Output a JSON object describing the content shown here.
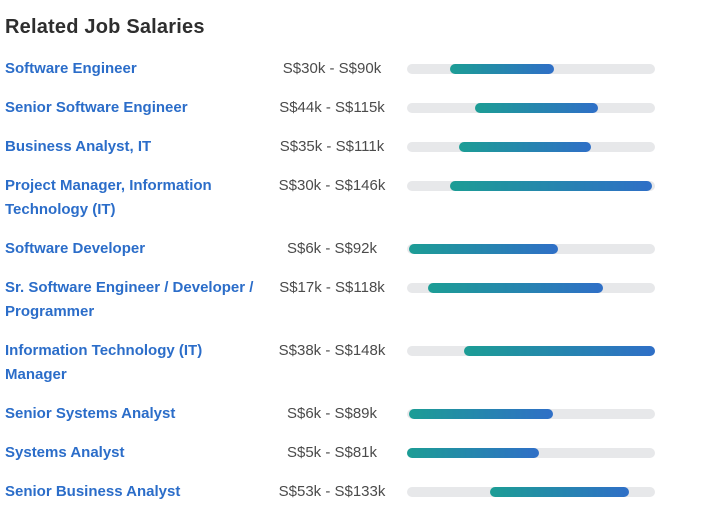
{
  "page": {
    "title": "Related Job Salaries"
  },
  "colors": {
    "link_blue": "#2b6dc9",
    "salary_text": "#4b4b4b",
    "title_text": "#2e2e2e",
    "bar_track": "#e7e8ea",
    "bar_gradient_start": "#1c9d95",
    "bar_gradient_end": "#2f6fc7",
    "background": "#ffffff"
  },
  "chart_data": {
    "type": "bar",
    "subtype": "horizontal-range-bars",
    "title": "Related Job Salaries",
    "currency": "S$",
    "unit": "k",
    "axis_range_k": [
      5,
      148
    ],
    "grid": false,
    "legend": false,
    "rows": [
      {
        "job": "Software Engineer",
        "min_k": 30,
        "max_k": 90,
        "range_label": "S$30k - S$90k"
      },
      {
        "job": "Senior Software Engineer",
        "min_k": 44,
        "max_k": 115,
        "range_label": "S$44k - S$115k"
      },
      {
        "job": "Business Analyst, IT",
        "min_k": 35,
        "max_k": 111,
        "range_label": "S$35k - S$111k"
      },
      {
        "job": "Project Manager, Information Technology (IT)",
        "min_k": 30,
        "max_k": 146,
        "range_label": "S$30k - S$146k"
      },
      {
        "job": "Software Developer",
        "min_k": 6,
        "max_k": 92,
        "range_label": "S$6k - S$92k"
      },
      {
        "job": "Sr. Software Engineer / Developer / Programmer",
        "min_k": 17,
        "max_k": 118,
        "range_label": "S$17k - S$118k"
      },
      {
        "job": "Information Technology (IT) Manager",
        "min_k": 38,
        "max_k": 148,
        "range_label": "S$38k - S$148k"
      },
      {
        "job": "Senior Systems Analyst",
        "min_k": 6,
        "max_k": 89,
        "range_label": "S$6k - S$89k"
      },
      {
        "job": "Systems Analyst",
        "min_k": 5,
        "max_k": 81,
        "range_label": "S$5k - S$81k"
      },
      {
        "job": "Senior Business Analyst",
        "min_k": 53,
        "max_k": 133,
        "range_label": "S$53k - S$133k"
      }
    ]
  }
}
